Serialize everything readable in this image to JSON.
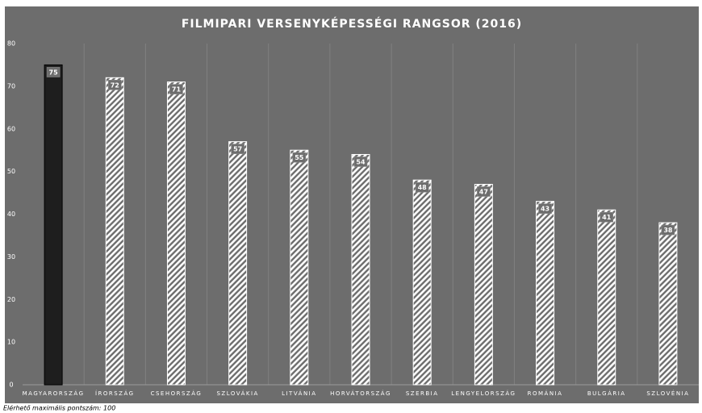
{
  "chart_data": {
    "type": "bar",
    "title": "FILMIPARI VERSENYKÉPESSÉGI RANGSOR (2016)",
    "categories": [
      "MAGYARORSZÁG",
      "ÍRORSZÁG",
      "CSEHORSZÁG",
      "SZLOVÁKIA",
      "LITVÁNIA",
      "HORVÁTORSZÁG",
      "SZERBIA",
      "LENGYELORSZÁG",
      "ROMÁNIA",
      "BULGÁRIA",
      "SZLOVÉNIA"
    ],
    "values": [
      75,
      72,
      71,
      57,
      55,
      54,
      48,
      47,
      43,
      41,
      38
    ],
    "colors": [
      "#1e1e1e",
      "#ffffff",
      "#ffffff",
      "#ffffff",
      "#ffffff",
      "#ffffff",
      "#ffffff",
      "#ffffff",
      "#ffffff",
      "#ffffff",
      "#ffffff"
    ],
    "ylim": [
      0,
      80
    ],
    "yticks": [
      0,
      10,
      20,
      30,
      40,
      50,
      60,
      70,
      80
    ],
    "grid": true,
    "footnote": "Elérhető maximális pontszám: 100"
  }
}
